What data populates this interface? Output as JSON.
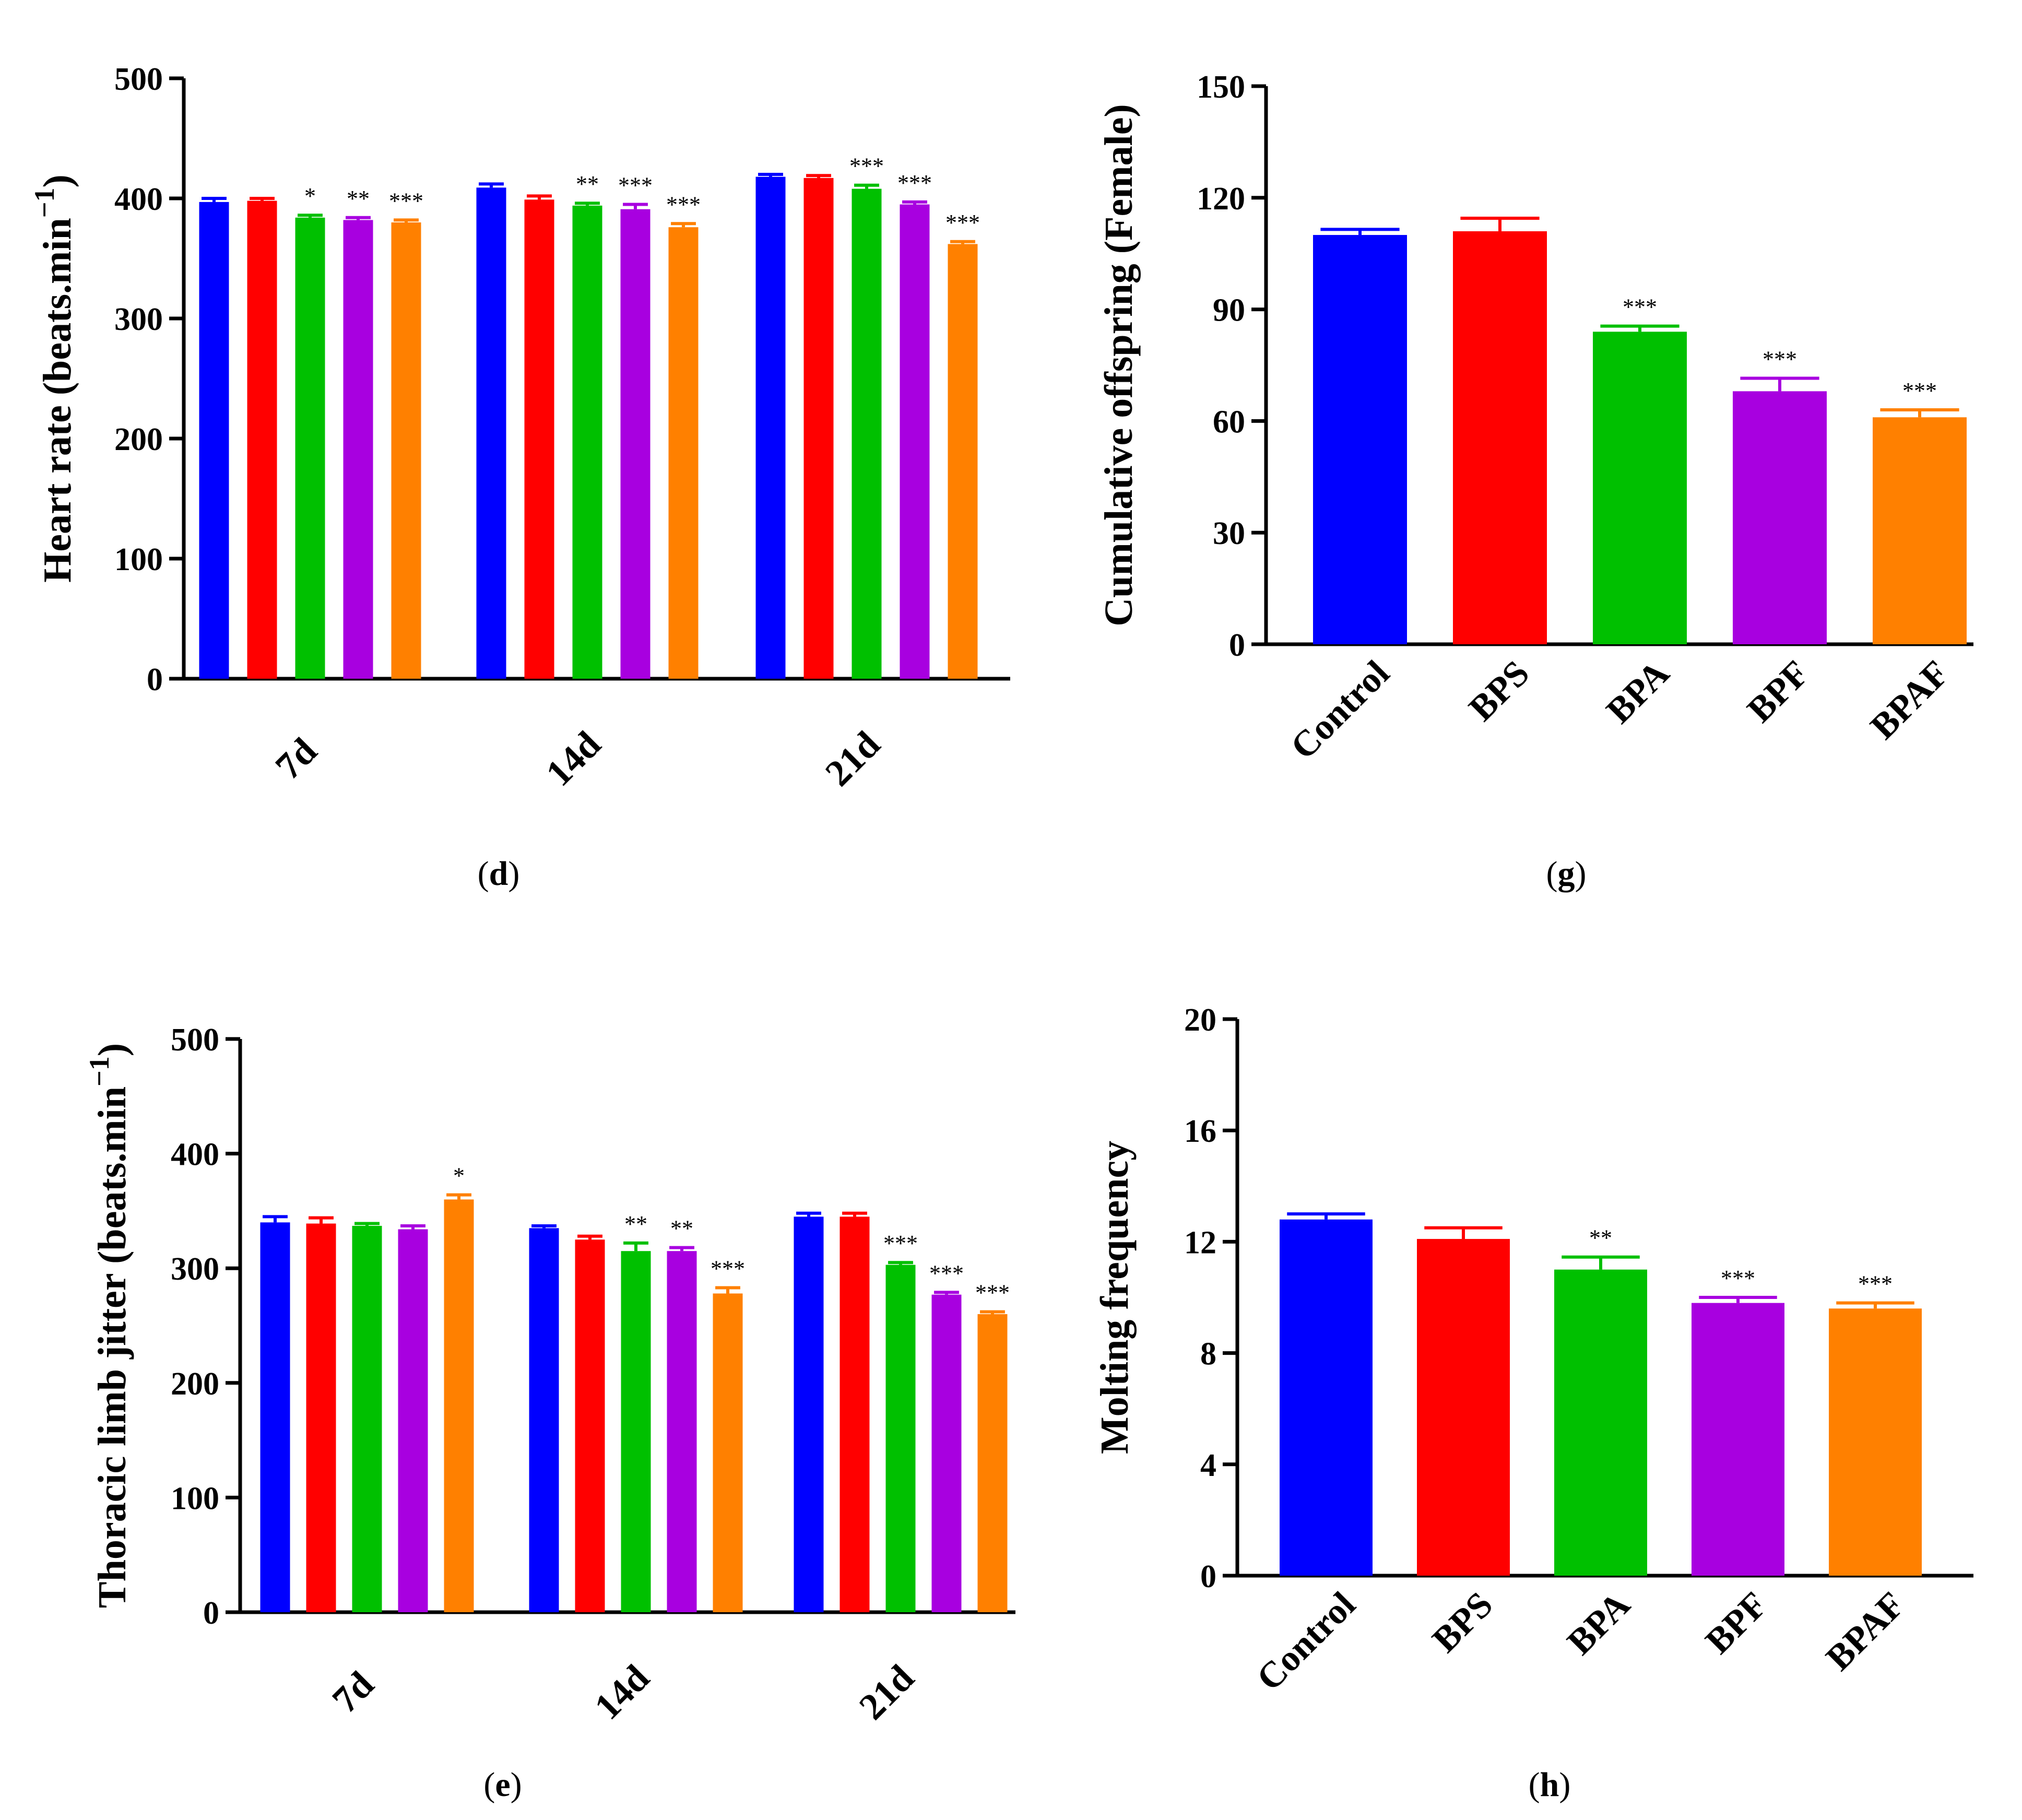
{
  "colors": {
    "Control": "#0000ff",
    "BPS": "#ff0000",
    "BPA": "#00c000",
    "BPF": "#a800e0",
    "BPAF": "#ff8000"
  },
  "groups": [
    "Control",
    "BPS",
    "BPA",
    "BPF",
    "BPAF"
  ],
  "chart_data": [
    {
      "panel": "(d)",
      "panel_letter": "d",
      "type": "bar",
      "ylabel": "Heart rate (beats.min",
      "ylabel_sup": "−1",
      "ylabel_close": ")",
      "categories": [
        "7d",
        "14d",
        "21d"
      ],
      "ylim": [
        0,
        500
      ],
      "yticks": [
        0,
        100,
        200,
        300,
        400,
        500
      ],
      "series": [
        {
          "name": "Control",
          "values": [
            397,
            409,
            418
          ],
          "errors": [
            3,
            3,
            2
          ],
          "sig": [
            "",
            "",
            ""
          ]
        },
        {
          "name": "BPS",
          "values": [
            398,
            399,
            417
          ],
          "errors": [
            2,
            3,
            2
          ],
          "sig": [
            "",
            "",
            ""
          ]
        },
        {
          "name": "BPA",
          "values": [
            384,
            394,
            408
          ],
          "errors": [
            2,
            2,
            3
          ],
          "sig": [
            "*",
            "**",
            "***"
          ]
        },
        {
          "name": "BPF",
          "values": [
            382,
            391,
            395
          ],
          "errors": [
            2,
            4,
            2
          ],
          "sig": [
            "**",
            "***",
            "***"
          ]
        },
        {
          "name": "BPAF",
          "values": [
            380,
            376,
            362
          ],
          "errors": [
            2,
            3,
            2
          ],
          "sig": [
            "***",
            "***",
            "***"
          ]
        }
      ]
    },
    {
      "panel": "(g)",
      "panel_letter": "g",
      "type": "bar",
      "ylabel": "Cumulative offspring (Female)",
      "categories": [
        "Control",
        "BPS",
        "BPA",
        "BPF",
        "BPAF"
      ],
      "ylim": [
        0,
        150
      ],
      "yticks": [
        0,
        30,
        60,
        90,
        120,
        150
      ],
      "values": [
        110,
        111,
        84,
        68,
        61
      ],
      "errors": [
        1.5,
        3.5,
        1.5,
        3.5,
        2.0
      ],
      "sig": [
        "",
        "",
        "***",
        "***",
        "***"
      ]
    },
    {
      "panel": "(e)",
      "panel_letter": "e",
      "type": "bar",
      "ylabel": "Thoracic limb jitter (beats.min",
      "ylabel_sup": "−1",
      "ylabel_close": ")",
      "categories": [
        "7d",
        "14d",
        "21d"
      ],
      "ylim": [
        0,
        500
      ],
      "yticks": [
        0,
        100,
        200,
        300,
        400,
        500
      ],
      "series": [
        {
          "name": "Control",
          "values": [
            340,
            335,
            345
          ],
          "errors": [
            5,
            2,
            3
          ],
          "sig": [
            "",
            "",
            ""
          ]
        },
        {
          "name": "BPS",
          "values": [
            339,
            325,
            345
          ],
          "errors": [
            5,
            3,
            3
          ],
          "sig": [
            "",
            "",
            ""
          ]
        },
        {
          "name": "BPA",
          "values": [
            337,
            315,
            303
          ],
          "errors": [
            2,
            7,
            2
          ],
          "sig": [
            "",
            "**",
            "***"
          ]
        },
        {
          "name": "BPF",
          "values": [
            334,
            315,
            277
          ],
          "errors": [
            3,
            3,
            2
          ],
          "sig": [
            "",
            "**",
            "***"
          ]
        },
        {
          "name": "BPAF",
          "values": [
            360,
            278,
            260
          ],
          "errors": [
            4,
            5,
            2
          ],
          "sig": [
            "*",
            "***",
            "***"
          ]
        }
      ]
    },
    {
      "panel": "(h)",
      "panel_letter": "h",
      "type": "bar",
      "ylabel": "Molting frequency",
      "categories": [
        "Control",
        "BPS",
        "BPA",
        "BPF",
        "BPAF"
      ],
      "ylim": [
        0,
        20
      ],
      "yticks": [
        0,
        4,
        8,
        12,
        16,
        20
      ],
      "values": [
        12.8,
        12.1,
        11.0,
        9.8,
        9.6
      ],
      "errors": [
        0.2,
        0.4,
        0.45,
        0.2,
        0.2
      ],
      "sig": [
        "",
        "",
        "**",
        "***",
        "***"
      ]
    }
  ]
}
